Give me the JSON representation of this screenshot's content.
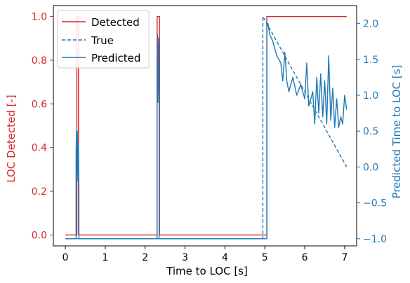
{
  "chart_data": {
    "type": "line",
    "xlabel": "Time to LOC [s]",
    "ylabel_left": "LOC Detected [-]",
    "ylabel_right": "Predicted Time to LOC [s]",
    "xlim": [
      -0.3,
      7.3
    ],
    "ylim_left": [
      -0.05,
      1.05
    ],
    "ylim_right": [
      -1.1,
      2.25
    ],
    "x_ticks": [
      "0",
      "1",
      "2",
      "3",
      "4",
      "5",
      "6",
      "7"
    ],
    "y_left_ticks": [
      "0.0",
      "0.2",
      "0.4",
      "0.6",
      "0.8",
      "1.0"
    ],
    "y_right_ticks": [
      "−1.0",
      "−0.5",
      "0.0",
      "0.5",
      "1.0",
      "1.5",
      "2.0"
    ],
    "colors": {
      "left_axis": "#d62728",
      "right_axis": "#1f77b4"
    },
    "legend_position": "top-left",
    "series": [
      {
        "name": "Detected",
        "axis": "left",
        "style": "solid",
        "color": "#d62728",
        "x": [
          0,
          0.29,
          0.29,
          0.33,
          0.33,
          2.3,
          2.3,
          2.36,
          2.36,
          5.05,
          5.05,
          7.05
        ],
        "y": [
          0,
          0,
          1,
          1,
          0,
          0,
          1,
          1,
          0,
          0,
          1,
          1
        ]
      },
      {
        "name": "True",
        "axis": "right",
        "style": "dashed",
        "color": "#1f77b4",
        "x": [
          0,
          4.95,
          4.95,
          7.05
        ],
        "y": [
          -1.0,
          -1.0,
          2.1,
          0.0
        ]
      },
      {
        "name": "Predicted",
        "axis": "right",
        "style": "solid",
        "color": "#1f77b4",
        "x": [
          0,
          0.27,
          0.27,
          0.28,
          0.29,
          0.3,
          0.31,
          0.32,
          0.33,
          0.34,
          0.34,
          2.3,
          2.3,
          2.31,
          2.32,
          2.33,
          2.34,
          2.35,
          2.35,
          5.05,
          5.05,
          5.08,
          5.12,
          5.2,
          5.3,
          5.4,
          5.45,
          5.5,
          5.55,
          5.6,
          5.7,
          5.8,
          5.9,
          6.0,
          6.05,
          6.1,
          6.2,
          6.25,
          6.3,
          6.35,
          6.4,
          6.45,
          6.5,
          6.55,
          6.6,
          6.65,
          6.7,
          6.75,
          6.8,
          6.85,
          6.9,
          6.95,
          7.0,
          7.05
        ],
        "y": [
          -1.0,
          -1.0,
          0.2,
          0.5,
          -0.1,
          0.5,
          0.1,
          -0.2,
          0.3,
          -0.3,
          -1.0,
          -1.0,
          1.5,
          1.85,
          0.9,
          1.45,
          1.8,
          1.0,
          -1.0,
          -1.0,
          1.95,
          2.0,
          1.85,
          1.75,
          1.55,
          1.45,
          1.2,
          1.6,
          1.2,
          1.05,
          1.25,
          1.0,
          1.15,
          0.95,
          1.45,
          0.85,
          1.05,
          0.6,
          1.25,
          0.75,
          1.3,
          0.7,
          1.2,
          0.6,
          1.55,
          0.65,
          1.1,
          0.55,
          0.95,
          0.55,
          0.7,
          0.6,
          1.0,
          0.8
        ]
      }
    ]
  }
}
